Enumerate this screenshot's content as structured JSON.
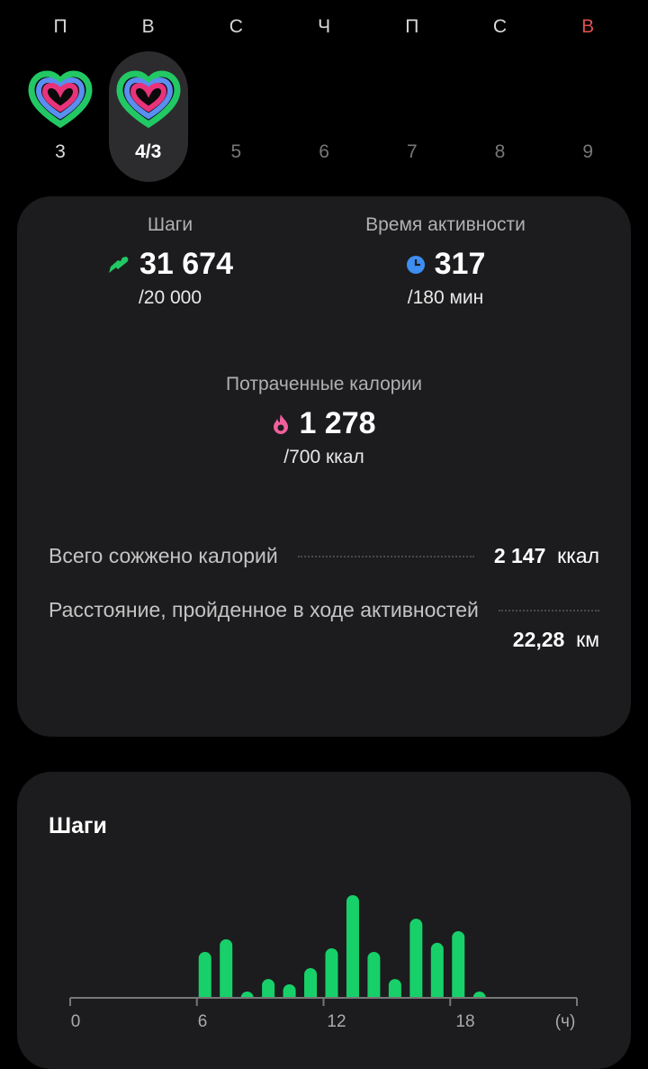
{
  "week": {
    "days": [
      {
        "letter": "П",
        "number": "3",
        "ring": true,
        "selected": false,
        "weekend": false
      },
      {
        "letter": "В",
        "number": "4/3",
        "ring": true,
        "selected": true,
        "weekend": false
      },
      {
        "letter": "С",
        "number": "5",
        "ring": false,
        "selected": false,
        "weekend": false
      },
      {
        "letter": "Ч",
        "number": "6",
        "ring": false,
        "selected": false,
        "weekend": false
      },
      {
        "letter": "П",
        "number": "7",
        "ring": false,
        "selected": false,
        "weekend": false
      },
      {
        "letter": "С",
        "number": "8",
        "ring": false,
        "selected": false,
        "weekend": false
      },
      {
        "letter": "В",
        "number": "9",
        "ring": false,
        "selected": false,
        "weekend": true
      }
    ]
  },
  "summary": {
    "steps": {
      "label": "Шаги",
      "value": "31 674",
      "goal": "/20 000",
      "icon": "shoe-icon",
      "color": "#22c864"
    },
    "active_time": {
      "label": "Время активности",
      "value": "317",
      "goal": "/180 мин",
      "icon": "clock-icon",
      "color": "#3d8ef0"
    },
    "calories": {
      "label": "Потраченные калории",
      "value": "1 278",
      "goal": "/700 ккал",
      "icon": "flame-icon",
      "color": "#f0609c"
    },
    "total_burned": {
      "label": "Всего сожжено калорий",
      "value": "2 147",
      "unit": "ккал"
    },
    "distance": {
      "label": "Расстояние, пройденное в ходе активностей",
      "value": "22,28",
      "unit": "км"
    }
  },
  "steps_card": {
    "title": "Шаги"
  },
  "chart_data": {
    "type": "bar",
    "x_ticks": [
      "0",
      "6",
      "12",
      "18"
    ],
    "x_unit_label": "(ч)",
    "xlim": [
      0,
      24
    ],
    "hours": [
      6,
      7,
      8,
      9,
      10,
      11,
      12,
      13,
      14,
      15,
      16,
      17,
      18,
      19
    ],
    "values": [
      2440,
      3110,
      330,
      1000,
      720,
      1580,
      2630,
      5450,
      2440,
      1000,
      4200,
      2920,
      3540,
      330
    ],
    "bar_color": "#17d06a",
    "grid": false
  }
}
